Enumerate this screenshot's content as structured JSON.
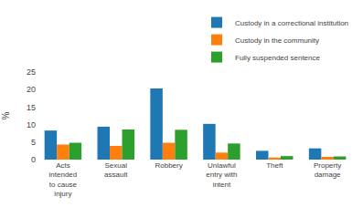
{
  "chart_data": {
    "type": "bar",
    "categories": [
      "Acts\nintended\nto cause\ninjury",
      "Sexual\nassault",
      "Robbery",
      "Unlawful\nentry with\nintent",
      "Theft",
      "Property\ndamage"
    ],
    "series": [
      {
        "name": "Custody in a correctional institution",
        "values": [
          8.3,
          9.4,
          20.3,
          10.2,
          2.5,
          3.2
        ]
      },
      {
        "name": "Custody in the community",
        "values": [
          4.3,
          3.9,
          4.8,
          2.0,
          0.6,
          0.8
        ]
      },
      {
        "name": "Fully suspended sentence",
        "values": [
          4.8,
          8.6,
          8.5,
          4.6,
          1.0,
          0.9
        ]
      }
    ],
    "ylabel": "%",
    "ylim": [
      0,
      25
    ],
    "yticks": [
      0,
      5,
      10,
      15,
      20,
      25
    ],
    "grid": false,
    "legend": "upper right"
  }
}
